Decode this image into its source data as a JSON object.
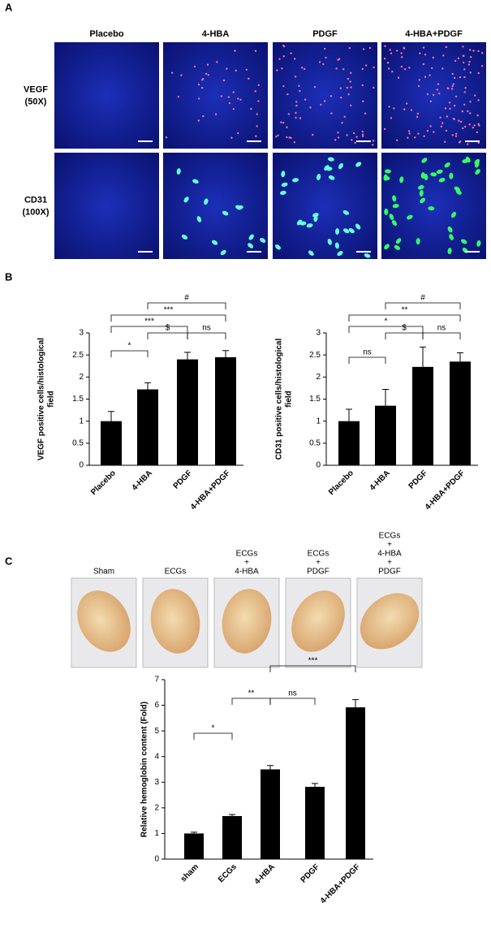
{
  "panel_labels": [
    "A",
    "B",
    "C"
  ],
  "image_grid": {
    "columns": [
      "Placebo",
      "4-HBA",
      "PDGF",
      "4-HBA+PDGF"
    ],
    "rows": [
      [
        "VEGF",
        "(50X)"
      ],
      [
        "CD31",
        "(100X)"
      ]
    ]
  },
  "photos": [
    [
      "Sham"
    ],
    [
      "ECGs"
    ],
    [
      "ECGs",
      "+",
      "4-HBA"
    ],
    [
      "ECGs",
      "+",
      "PDGF"
    ],
    [
      "ECGs",
      "+",
      "4-HBA",
      "+",
      "PDGF"
    ]
  ],
  "chart_data": [
    {
      "type": "bar",
      "ylabel": [
        "VEGF positive cells/histological",
        "field"
      ],
      "categories": [
        "Placebo",
        "4-HBA",
        "PDGF",
        "4-HBA+PDGF"
      ],
      "values": [
        1,
        1.72,
        2.4,
        2.45
      ],
      "errors": [
        0.22,
        0.15,
        0.16,
        0.15
      ],
      "color": "#000000",
      "ylim": [
        0,
        3
      ],
      "yticks": [
        0,
        0.5,
        1,
        1.5,
        2,
        2.5,
        3
      ],
      "annotations": [
        "*",
        "***",
        "***",
        "#",
        "$",
        "ns"
      ]
    },
    {
      "type": "bar",
      "ylabel": [
        "CD31 positive cells/histological",
        "field"
      ],
      "categories": [
        "Placebo",
        "4-HBA",
        "PDGF",
        "4-HBA+PDGF"
      ],
      "values": [
        1,
        1.35,
        2.23,
        2.35
      ],
      "errors": [
        0.27,
        0.37,
        0.45,
        0.2
      ],
      "color": "#000000",
      "ylim": [
        0,
        3
      ],
      "yticks": [
        0,
        0.5,
        1,
        1.5,
        2,
        2.5,
        3
      ],
      "annotations": [
        "ns",
        "*",
        "**",
        "#",
        "$",
        "ns"
      ]
    },
    {
      "type": "bar",
      "ylabel": [
        "Relative  hemoglobin content (Fold)"
      ],
      "categories": [
        "sham",
        "ECGs",
        "4-HBA",
        "PDGF",
        "4-HBA+PDGF"
      ],
      "values": [
        1,
        1.68,
        3.5,
        2.82,
        5.92
      ],
      "errors": [
        0.05,
        0.06,
        0.15,
        0.13,
        0.3
      ],
      "color": "#000000",
      "ylim": [
        0,
        7
      ],
      "yticks": [
        0,
        1,
        2,
        3,
        4,
        5,
        6,
        7
      ],
      "annotations": [
        "*",
        "**",
        "ns",
        "***"
      ]
    }
  ]
}
